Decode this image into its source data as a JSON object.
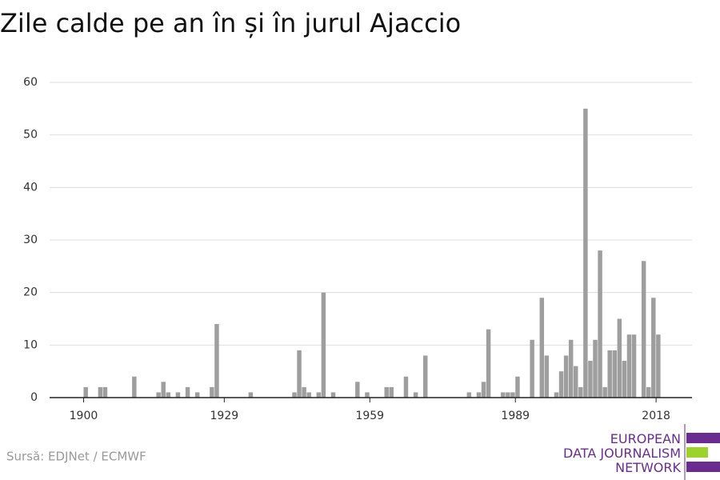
{
  "chart_data": {
    "type": "bar",
    "title": "Zile calde pe an în și în jurul Ajaccio",
    "x": [
      1900,
      1903,
      1904,
      1910,
      1915,
      1916,
      1917,
      1919,
      1921,
      1923,
      1926,
      1927,
      1934,
      1943,
      1944,
      1945,
      1946,
      1948,
      1949,
      1951,
      1956,
      1958,
      1962,
      1963,
      1966,
      1968,
      1970,
      1979,
      1981,
      1982,
      1983,
      1986,
      1987,
      1988,
      1989,
      1992,
      1994,
      1995,
      1997,
      1998,
      1999,
      2000,
      2001,
      2002,
      2003,
      2004,
      2005,
      2006,
      2007,
      2008,
      2009,
      2010,
      2011,
      2012,
      2013,
      2015,
      2016,
      2017,
      2018
    ],
    "values": [
      2,
      2,
      2,
      4,
      1,
      3,
      1,
      1,
      2,
      1,
      2,
      14,
      1,
      1,
      9,
      2,
      1,
      1,
      20,
      1,
      3,
      1,
      2,
      2,
      4,
      1,
      8,
      1,
      1,
      3,
      13,
      1,
      1,
      1,
      4,
      11,
      19,
      8,
      1,
      5,
      8,
      11,
      6,
      2,
      55,
      7,
      11,
      28,
      2,
      9,
      9,
      15,
      7,
      12,
      12,
      26,
      2,
      19,
      12
    ],
    "color": "#9e9e9e",
    "xlim": [
      1893,
      2025.4
    ],
    "xticks": [
      1900,
      1929,
      1959,
      1989,
      2018
    ],
    "ylim": [
      0,
      60
    ],
    "yticks": [
      0,
      10,
      20,
      30,
      40,
      50,
      60
    ],
    "grid": true
  },
  "source": "Sursă: EDJNet / ECMWF",
  "logo": {
    "line1": "EUROPEAN",
    "line2": "DATA JOURNALISM",
    "line3": "NETWORK"
  }
}
